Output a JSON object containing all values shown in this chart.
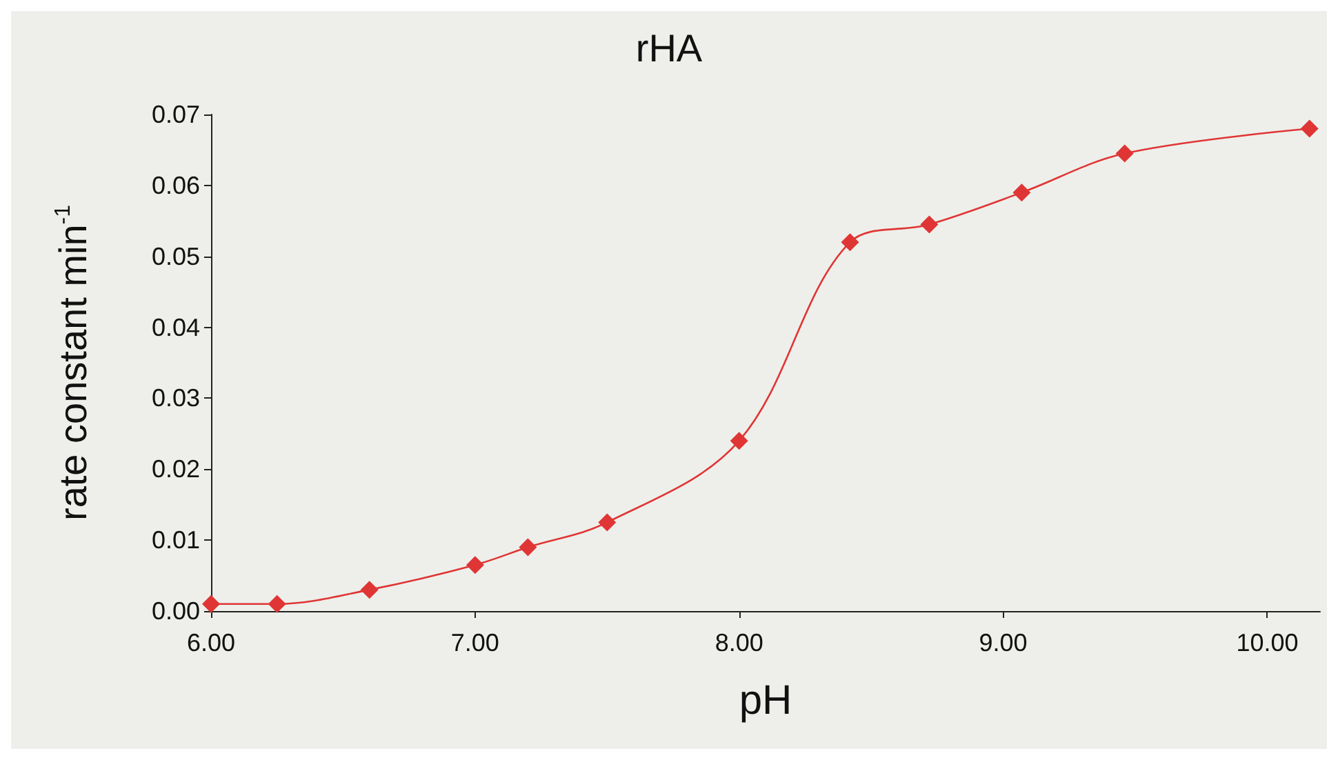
{
  "chart_data": {
    "type": "line",
    "title": "rHA",
    "xlabel": "pH",
    "ylabel": "rate constant min$^{-1}$",
    "x": [
      6.0,
      6.25,
      6.6,
      7.0,
      7.2,
      7.5,
      8.0,
      8.42,
      8.72,
      9.07,
      9.46,
      10.16
    ],
    "series": [
      {
        "color": "#e03535",
        "values": [
          0.001,
          0.001,
          0.003,
          0.0065,
          0.009,
          0.0125,
          0.024,
          0.052,
          0.0545,
          0.059,
          0.0645,
          0.068
        ]
      }
    ],
    "xlim": [
      6,
      10.2
    ],
    "xticks": [
      {
        "value": 6,
        "label": "6.00"
      },
      {
        "value": 7,
        "label": "7.00"
      },
      {
        "value": 8,
        "label": "8.00"
      },
      {
        "value": 9,
        "label": "9.00"
      },
      {
        "value": 10,
        "label": "10.00"
      }
    ],
    "ylim": [
      0,
      0.07
    ],
    "yticks": [
      {
        "value": 0,
        "label": "0.00"
      },
      {
        "value": 0.01,
        "label": "0.01"
      },
      {
        "value": 0.02,
        "label": "0.02"
      },
      {
        "value": 0.03,
        "label": "0.03"
      },
      {
        "value": 0.04,
        "label": "0.04"
      },
      {
        "value": 0.05,
        "label": "0.05"
      },
      {
        "value": 0.06,
        "label": "0.06"
      },
      {
        "value": 0.07,
        "label": "0.07"
      }
    ],
    "grid": false,
    "marker": "diamond",
    "line_style": "solid"
  }
}
